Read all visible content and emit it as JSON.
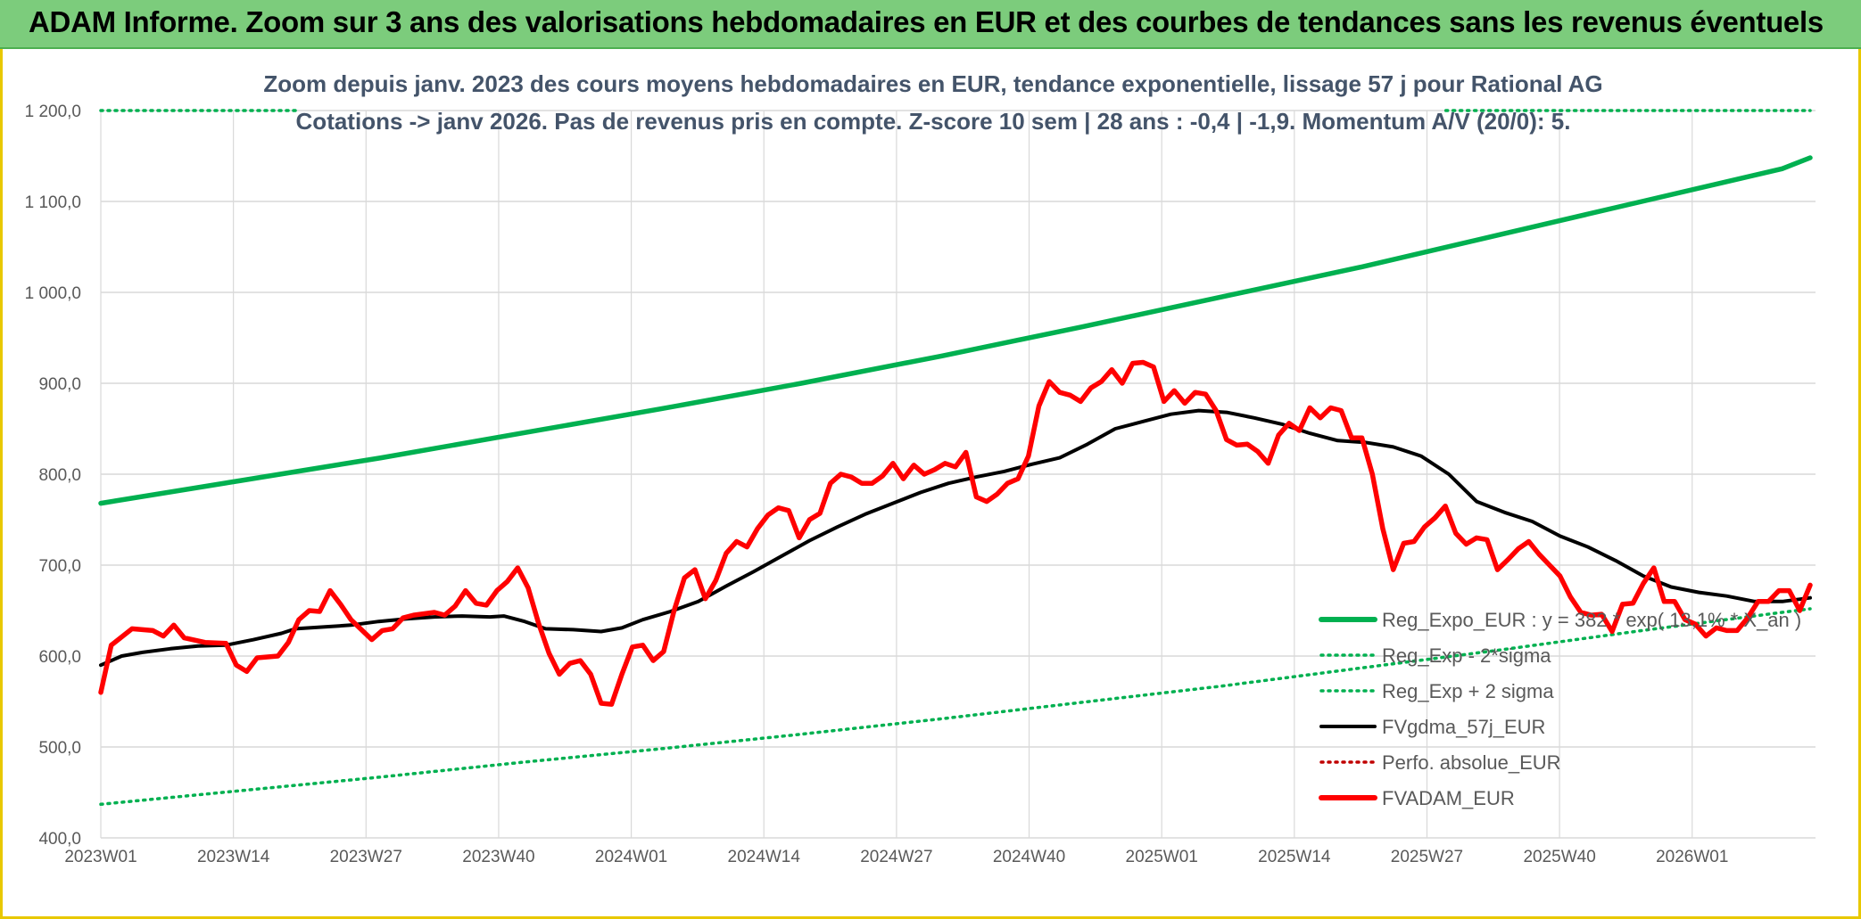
{
  "banner": {
    "title": "ADAM Informe. Zoom sur 3 ans des valorisations hebdomadaires en EUR et des courbes de tendances sans les revenus éventuels"
  },
  "colors": {
    "banner_bg": "#7ccc7c",
    "frame_border": "#e8c800",
    "trend_green": "#00b050",
    "fvadam_red": "#ff0000",
    "fvgdma_black": "#000000",
    "perfo_red": "#c00000",
    "grid": "#d9d9d9",
    "subtitle": "#44546a"
  },
  "chart_data": {
    "type": "line",
    "title_lines": [
      "Zoom depuis janv. 2023 des cours moyens hebdomadaires en EUR, tendance exponentielle, lissage 57 j pour Rational AG",
      "Cotations -> janv 2026. Pas de revenus pris en compte. Z-score 10 sem | 28 ans : -0,4 | -1,9. Momentum A/V (20/0): 5."
    ],
    "ylim": [
      400,
      1200
    ],
    "yticks": [
      "400,0",
      "500,0",
      "600,0",
      "700,0",
      "800,0",
      "900,0",
      "1 000,0",
      "1 100,0",
      "1 200,0"
    ],
    "ytick_values": [
      400,
      500,
      600,
      700,
      800,
      900,
      1000,
      1100,
      1200
    ],
    "xticks": [
      "2023W01",
      "2023W14",
      "2023W27",
      "2023W40",
      "2024W01",
      "2024W14",
      "2024W27",
      "2024W40",
      "2025W01",
      "2025W14",
      "2025W27",
      "2025W40",
      "2026W01"
    ],
    "weeks_total": 161,
    "tick_every_weeks": 13,
    "grid": true,
    "legend_position": "bottom-right",
    "series": [
      {
        "name": "Reg_Expo_EUR : y = 382 * exp( 13,1% * X_an )",
        "style": "solid-thick",
        "color": "#00b050",
        "points": [
          [
            0,
            768
          ],
          [
            20,
            793
          ],
          [
            40,
            818
          ],
          [
            60,
            845
          ],
          [
            80,
            872
          ],
          [
            100,
            900
          ],
          [
            120,
            930
          ],
          [
            140,
            962
          ],
          [
            160,
            995
          ],
          [
            180,
            1028
          ],
          [
            200,
            1064
          ],
          [
            220,
            1100
          ],
          [
            240,
            1136
          ],
          [
            244,
            1148
          ]
        ]
      },
      {
        "name": "Reg_Exp - 2*sigma",
        "style": "dotted",
        "color": "#00b050",
        "points": [
          [
            0,
            437
          ],
          [
            20,
            452
          ],
          [
            40,
            467
          ],
          [
            60,
            483
          ],
          [
            80,
            498
          ],
          [
            100,
            514
          ],
          [
            120,
            531
          ],
          [
            140,
            549
          ],
          [
            160,
            567
          ],
          [
            180,
            587
          ],
          [
            200,
            607
          ],
          [
            220,
            628
          ],
          [
            240,
            648
          ],
          [
            244,
            652
          ]
        ]
      },
      {
        "name": "Reg_Exp + 2 sigma",
        "style": "dotted",
        "color": "#00b050",
        "visible_segments": [
          [
            0,
            28
          ],
          [
            192,
            244
          ]
        ],
        "points": [
          [
            0,
            1200
          ],
          [
            244,
            1200
          ]
        ]
      },
      {
        "name": "FVgdma_57j_EUR",
        "style": "solid",
        "color": "#000000",
        "points": [
          [
            0,
            590
          ],
          [
            3,
            600
          ],
          [
            6,
            604
          ],
          [
            10,
            608
          ],
          [
            14,
            611
          ],
          [
            18,
            612
          ],
          [
            22,
            618
          ],
          [
            26,
            625
          ],
          [
            28,
            630
          ],
          [
            32,
            632
          ],
          [
            36,
            634
          ],
          [
            40,
            638
          ],
          [
            44,
            641
          ],
          [
            48,
            643
          ],
          [
            52,
            644
          ],
          [
            56,
            643
          ],
          [
            58,
            644
          ],
          [
            61,
            638
          ],
          [
            64,
            630
          ],
          [
            68,
            629
          ],
          [
            72,
            627
          ],
          [
            75,
            631
          ],
          [
            78,
            640
          ],
          [
            82,
            649
          ],
          [
            86,
            660
          ],
          [
            90,
            677
          ],
          [
            94,
            693
          ],
          [
            98,
            710
          ],
          [
            102,
            727
          ],
          [
            106,
            742
          ],
          [
            110,
            756
          ],
          [
            114,
            768
          ],
          [
            118,
            780
          ],
          [
            122,
            790
          ],
          [
            126,
            797
          ],
          [
            130,
            803
          ],
          [
            134,
            811
          ],
          [
            138,
            818
          ],
          [
            142,
            833
          ],
          [
            146,
            850
          ],
          [
            150,
            858
          ],
          [
            154,
            866
          ],
          [
            158,
            870
          ],
          [
            162,
            868
          ],
          [
            166,
            862
          ],
          [
            170,
            855
          ],
          [
            174,
            845
          ],
          [
            178,
            837
          ],
          [
            182,
            835
          ],
          [
            186,
            830
          ],
          [
            190,
            820
          ],
          [
            194,
            800
          ],
          [
            198,
            770
          ],
          [
            202,
            758
          ],
          [
            206,
            748
          ],
          [
            210,
            732
          ],
          [
            214,
            720
          ],
          [
            218,
            705
          ],
          [
            222,
            688
          ],
          [
            226,
            676
          ],
          [
            230,
            670
          ],
          [
            234,
            666
          ],
          [
            238,
            660
          ],
          [
            242,
            660
          ],
          [
            246,
            664
          ]
        ]
      },
      {
        "name": "Perfo. absolue_EUR",
        "style": "dotted",
        "color": "#c00000",
        "points": []
      },
      {
        "name": "FVADAM_EUR",
        "style": "solid-thick",
        "color": "#ff0000",
        "points": [
          [
            0,
            560
          ],
          [
            1,
            612
          ],
          [
            3,
            630
          ],
          [
            5,
            628
          ],
          [
            6,
            622
          ],
          [
            7,
            634
          ],
          [
            8,
            620
          ],
          [
            10,
            615
          ],
          [
            12,
            614
          ],
          [
            13,
            590
          ],
          [
            14,
            583
          ],
          [
            15,
            598
          ],
          [
            17,
            600
          ],
          [
            18,
            615
          ],
          [
            19,
            640
          ],
          [
            20,
            650
          ],
          [
            21,
            649
          ],
          [
            22,
            672
          ],
          [
            23,
            657
          ],
          [
            24,
            640
          ],
          [
            25,
            629
          ],
          [
            26,
            618
          ],
          [
            27,
            628
          ],
          [
            28,
            630
          ],
          [
            29,
            642
          ],
          [
            30,
            645
          ],
          [
            32,
            648
          ],
          [
            33,
            645
          ],
          [
            34,
            655
          ],
          [
            35,
            672
          ],
          [
            36,
            658
          ],
          [
            37,
            656
          ],
          [
            38,
            672
          ],
          [
            39,
            682
          ],
          [
            40,
            697
          ],
          [
            41,
            675
          ],
          [
            42,
            636
          ],
          [
            43,
            603
          ],
          [
            44,
            580
          ],
          [
            45,
            592
          ],
          [
            46,
            595
          ],
          [
            47,
            580
          ],
          [
            48,
            548
          ],
          [
            49,
            547
          ],
          [
            50,
            580
          ],
          [
            51,
            610
          ],
          [
            52,
            612
          ],
          [
            53,
            595
          ],
          [
            54,
            605
          ],
          [
            55,
            650
          ],
          [
            56,
            686
          ],
          [
            57,
            695
          ],
          [
            58,
            663
          ],
          [
            59,
            683
          ],
          [
            60,
            713
          ],
          [
            61,
            726
          ],
          [
            62,
            720
          ],
          [
            63,
            740
          ],
          [
            64,
            755
          ],
          [
            65,
            763
          ],
          [
            66,
            760
          ],
          [
            67,
            730
          ],
          [
            68,
            750
          ],
          [
            69,
            757
          ],
          [
            70,
            790
          ],
          [
            71,
            800
          ],
          [
            72,
            797
          ],
          [
            73,
            790
          ],
          [
            74,
            790
          ],
          [
            75,
            798
          ],
          [
            76,
            812
          ],
          [
            77,
            795
          ],
          [
            78,
            810
          ],
          [
            79,
            800
          ],
          [
            80,
            805
          ],
          [
            81,
            812
          ],
          [
            82,
            808
          ],
          [
            83,
            824
          ],
          [
            84,
            775
          ],
          [
            85,
            770
          ],
          [
            86,
            778
          ],
          [
            87,
            790
          ],
          [
            88,
            795
          ],
          [
            89,
            820
          ],
          [
            90,
            875
          ],
          [
            91,
            902
          ],
          [
            92,
            890
          ],
          [
            93,
            887
          ],
          [
            94,
            880
          ],
          [
            95,
            895
          ],
          [
            96,
            902
          ],
          [
            97,
            915
          ],
          [
            98,
            900
          ],
          [
            99,
            922
          ],
          [
            100,
            923
          ],
          [
            101,
            918
          ],
          [
            102,
            880
          ],
          [
            103,
            892
          ],
          [
            104,
            878
          ],
          [
            105,
            890
          ],
          [
            106,
            888
          ],
          [
            107,
            870
          ],
          [
            108,
            838
          ],
          [
            109,
            832
          ],
          [
            110,
            833
          ],
          [
            111,
            825
          ],
          [
            112,
            812
          ],
          [
            113,
            843
          ],
          [
            114,
            856
          ],
          [
            115,
            848
          ],
          [
            116,
            873
          ],
          [
            117,
            862
          ],
          [
            118,
            873
          ],
          [
            119,
            870
          ],
          [
            120,
            840
          ],
          [
            121,
            840
          ],
          [
            122,
            800
          ],
          [
            123,
            740
          ],
          [
            124,
            695
          ],
          [
            125,
            724
          ],
          [
            126,
            726
          ],
          [
            127,
            742
          ],
          [
            128,
            752
          ],
          [
            129,
            765
          ],
          [
            130,
            735
          ],
          [
            131,
            723
          ],
          [
            132,
            730
          ],
          [
            133,
            728
          ],
          [
            134,
            695
          ],
          [
            135,
            706
          ],
          [
            136,
            718
          ],
          [
            137,
            726
          ],
          [
            138,
            712
          ],
          [
            139,
            700
          ],
          [
            140,
            688
          ],
          [
            141,
            665
          ],
          [
            142,
            648
          ],
          [
            143,
            645
          ],
          [
            144,
            646
          ],
          [
            145,
            627
          ],
          [
            146,
            657
          ],
          [
            147,
            658
          ],
          [
            148,
            680
          ],
          [
            149,
            697
          ],
          [
            150,
            660
          ],
          [
            151,
            660
          ],
          [
            152,
            640
          ],
          [
            153,
            635
          ],
          [
            154,
            622
          ],
          [
            155,
            631
          ],
          [
            156,
            628
          ],
          [
            157,
            628
          ],
          [
            158,
            642
          ],
          [
            159,
            660
          ],
          [
            160,
            660
          ],
          [
            161,
            672
          ],
          [
            162,
            672
          ],
          [
            163,
            650
          ],
          [
            164,
            678
          ]
        ]
      }
    ],
    "legend_entries": [
      "Reg_Expo_EUR : y = 382 * exp( 13,1% * X_an )",
      "Reg_Exp - 2*sigma",
      "Reg_Exp + 2 sigma",
      "FVgdma_57j_EUR",
      "Perfo. absolue_EUR",
      "FVADAM_EUR"
    ]
  }
}
